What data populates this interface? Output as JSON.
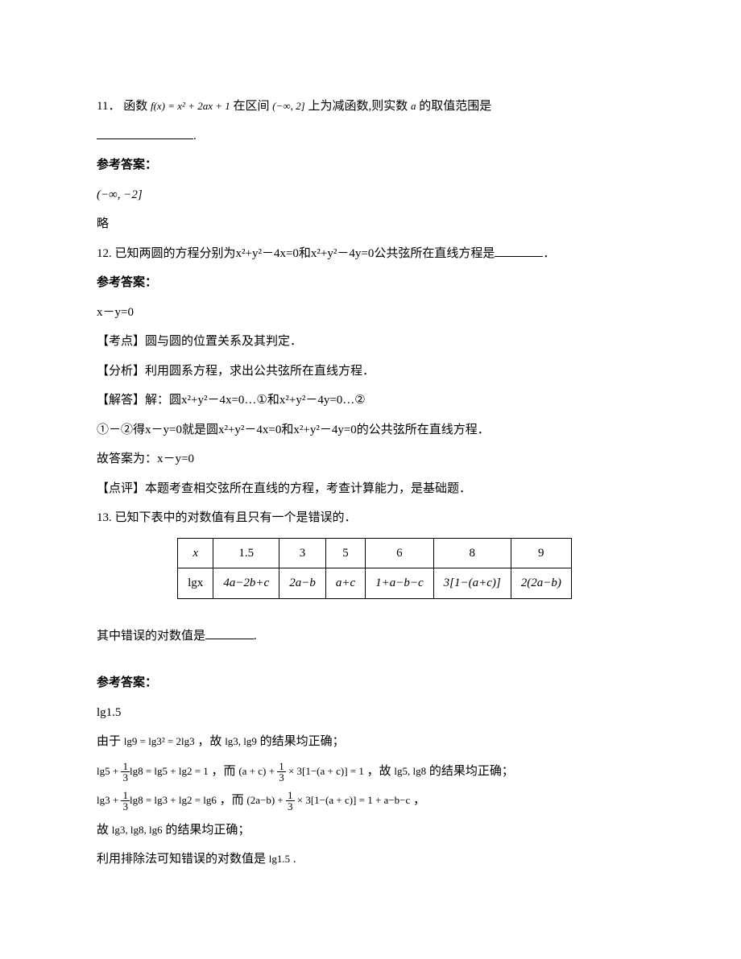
{
  "q11": {
    "number": "11．",
    "prefix": "函数",
    "func": "f(x) = x² + 2ax + 1",
    "mid1": "在区间",
    "interval": "(−∞, 2]",
    "mid2": "上为减函数,则实数",
    "var": "a",
    "suffix": "的取值范围是",
    "period": ".",
    "ref_label": "参考答案：",
    "answer": "(−∞, −2]",
    "lue": "略"
  },
  "q12": {
    "number": "12. ",
    "text1": "已知两圆的方程分别为x²+y²－4x=0和x²+y²－4y=0公共弦所在直线方程是",
    "period": "．",
    "ref_label": "参考答案：",
    "answer": "x－y=0",
    "kaodian": "【考点】圆与圆的位置关系及其判定．",
    "fenxi": "【分析】利用圆系方程，求出公共弦所在直线方程．",
    "jieda_prefix": "【解答】解：圆x²+y²－4x=0…",
    "circ1": "①",
    "jieda_mid": "和x²+y²－4y=0…",
    "circ2": "②",
    "step2_prefix": "①－②得x－y=0就是圆x²+y²－4x=0和x²+y²－4y=0的公共弦所在直线方程．",
    "gu": "故答案为：x－y=0",
    "dianping": "【点评】本题考查相交弦所在直线的方程，考查计算能力，是基础题．"
  },
  "q13": {
    "number": "13. ",
    "text": "已知下表中的对数值有且只有一个是错误的．",
    "table": {
      "header": [
        "x",
        "1.5",
        "3",
        "5",
        "6",
        "8",
        "9"
      ],
      "row_label": "lgx",
      "row": [
        "4a−2b+c",
        "2a−b",
        "a+c",
        "1+a−b−c",
        "3[1−(a+c)]",
        "2(2a−b)"
      ]
    },
    "tail": "其中错误的对数值是",
    "period": ".",
    "ref_label": "参考答案：",
    "answer": "lg1.5",
    "line1_a": "由于",
    "line1_b": "lg9 = lg3² = 2lg3",
    "line1_c": "，故",
    "line1_d": "lg3, lg9",
    "line1_e": "的结果均正确；",
    "line2_a": "lg5 + ",
    "line2_frac_num": "1",
    "line2_frac_den": "3",
    "line2_b": "lg8 = lg5 + lg2 = 1",
    "line2_c": "，而",
    "line2_d": "(a + c) + ",
    "line2_frac2_num": "1",
    "line2_frac2_den": "3",
    "line2_e": " × 3[1−(a + c)] = 1",
    "line2_f": "，故",
    "line2_g": "lg5, lg8",
    "line2_h": "  的结果均正确；",
    "line3_a": "lg3 + ",
    "line3_frac_num": "1",
    "line3_frac_den": "3",
    "line3_b": "lg8 = lg3 + lg2 = lg6",
    "line3_c": "，而",
    "line3_d": "(2a−b) + ",
    "line3_frac2_num": "1",
    "line3_frac2_den": "3",
    "line3_e": " × 3[1−(a + c)] = 1 + a−b−c",
    "line3_f": "，",
    "line4_a": "故",
    "line4_b": "lg3, lg8, lg6",
    "line4_c": "  的结果均正确；",
    "line5_a": "利用排除法可知错误的对数值是",
    "line5_b": "lg1.5",
    "line5_c": "."
  }
}
